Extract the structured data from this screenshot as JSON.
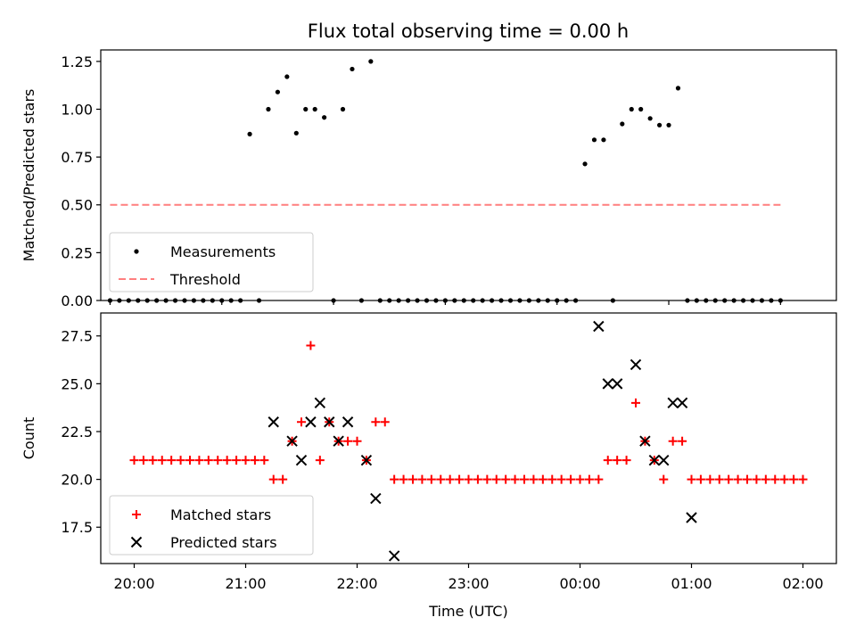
{
  "figure": {
    "title": "Flux total observing time = 0.00 h"
  },
  "chart_data": [
    {
      "type": "scatter",
      "ylabel": "Matched/Predicted stars",
      "xlabel": "",
      "xlim": [
        -0.0833,
        6.5
      ],
      "ylim": [
        0.0,
        1.31
      ],
      "x_tick_labels": [],
      "y_ticks": [
        0.0,
        0.25,
        0.5,
        0.75,
        1.0,
        1.25
      ],
      "y_tick_labels": [
        "0.00",
        "0.25",
        "0.50",
        "0.75",
        "1.00",
        "1.25"
      ],
      "grid": false,
      "legend": {
        "placement": "lower-left",
        "entries": [
          "Measurements",
          "Threshold"
        ]
      },
      "series": [
        {
          "name": "Measurements",
          "marker": "dot",
          "color": "#000000",
          "x": [
            0.0,
            0.0833,
            0.1667,
            0.25,
            0.3333,
            0.4167,
            0.5,
            0.5833,
            0.6667,
            0.75,
            0.8333,
            0.9167,
            1.0,
            1.0833,
            1.1667,
            1.25,
            1.3333,
            1.4167,
            1.5,
            1.5833,
            1.6667,
            1.75,
            1.8333,
            1.9167,
            2.0,
            2.0833,
            2.1667,
            2.25,
            2.3333,
            2.4167,
            2.5,
            2.5833,
            2.6667,
            2.75,
            2.8333,
            2.9167,
            3.0,
            3.0833,
            3.1667,
            3.25,
            3.3333,
            3.4167,
            3.5,
            3.5833,
            3.6667,
            3.75,
            3.8333,
            3.9167,
            4.0,
            4.0833,
            4.1667,
            4.25,
            4.3333,
            4.4167,
            4.5,
            4.5833,
            4.6667,
            4.75,
            4.8333,
            4.9167,
            5.0,
            5.0833,
            5.1667,
            5.25,
            5.3333,
            5.4167,
            5.5,
            5.5833,
            5.6667,
            5.75,
            5.8333,
            5.9167,
            6.0
          ],
          "y": [
            0,
            0,
            0,
            0,
            0,
            0,
            0,
            0,
            0,
            0,
            0,
            0,
            0,
            0,
            0,
            0.87,
            0,
            1.0,
            1.09,
            1.17,
            0.875,
            1.0,
            1.0,
            0.957,
            0,
            1.0,
            1.21,
            0,
            1.25,
            0,
            0,
            0,
            0,
            0,
            0,
            0,
            0,
            0,
            0,
            0,
            0,
            0,
            0,
            0,
            0,
            0,
            0,
            0,
            0,
            0,
            0,
            0.714,
            0.84,
            0.84,
            0,
            0.923,
            1.0,
            1.0,
            0.952,
            0.917,
            0.917,
            1.11,
            0,
            0,
            0,
            0,
            0,
            0,
            0,
            0,
            0,
            0,
            0
          ]
        },
        {
          "name": "Threshold",
          "style": "dashed",
          "color": "#ff7f7f",
          "x": [
            0.0,
            6.0
          ],
          "y": [
            0.5,
            0.5
          ]
        }
      ]
    },
    {
      "type": "scatter",
      "xlabel": "Time (UTC)",
      "ylabel": "Count",
      "xlim": [
        -0.3,
        6.3
      ],
      "ylim": [
        15.6,
        28.7
      ],
      "x_ticks": [
        0,
        1,
        2,
        3,
        4,
        5,
        6
      ],
      "x_tick_labels": [
        "20:00",
        "21:00",
        "22:00",
        "23:00",
        "00:00",
        "01:00",
        "02:00"
      ],
      "y_ticks": [
        17.5,
        20.0,
        22.5,
        25.0,
        27.5
      ],
      "y_tick_labels": [
        "17.5",
        "20.0",
        "22.5",
        "25.0",
        "27.5"
      ],
      "grid": false,
      "legend": {
        "placement": "lower-left",
        "entries": [
          "Matched stars",
          "Predicted stars"
        ]
      },
      "series": [
        {
          "name": "Matched stars",
          "marker": "plus",
          "color": "#ff0000",
          "x": [
            0.0,
            0.0833,
            0.1667,
            0.25,
            0.3333,
            0.4167,
            0.5,
            0.5833,
            0.6667,
            0.75,
            0.8333,
            0.9167,
            1.0,
            1.0833,
            1.1667,
            1.25,
            1.3333,
            1.4167,
            1.5,
            1.5833,
            1.6667,
            1.75,
            1.8333,
            1.9167,
            2.0,
            2.0833,
            2.1667,
            2.25,
            2.3333,
            2.4167,
            2.5,
            2.5833,
            2.6667,
            2.75,
            2.8333,
            2.9167,
            3.0,
            3.0833,
            3.1667,
            3.25,
            3.3333,
            3.4167,
            3.5,
            3.5833,
            3.6667,
            3.75,
            3.8333,
            3.9167,
            4.0,
            4.0833,
            4.1667,
            4.25,
            4.3333,
            4.4167,
            4.5,
            4.5833,
            4.6667,
            4.75,
            4.8333,
            4.9167,
            5.0,
            5.0833,
            5.1667,
            5.25,
            5.3333,
            5.4167,
            5.5,
            5.5833,
            5.6667,
            5.75,
            5.8333,
            5.9167,
            6.0
          ],
          "y": [
            21,
            21,
            21,
            21,
            21,
            21,
            21,
            21,
            21,
            21,
            21,
            21,
            21,
            21,
            21,
            20,
            20,
            22,
            23,
            27,
            21,
            23,
            22,
            22,
            22,
            21,
            23,
            23,
            20,
            20,
            20,
            20,
            20,
            20,
            20,
            20,
            20,
            20,
            20,
            20,
            20,
            20,
            20,
            20,
            20,
            20,
            20,
            20,
            20,
            20,
            20,
            21,
            21,
            21,
            24,
            22,
            21,
            20,
            22,
            22,
            20,
            20,
            20,
            20,
            20,
            20,
            20,
            20,
            20,
            20,
            20,
            20,
            20
          ]
        },
        {
          "name": "Predicted stars",
          "marker": "x",
          "color": "#000000",
          "x": [
            1.25,
            1.4167,
            1.5,
            1.5833,
            1.6667,
            1.75,
            1.8333,
            1.9167,
            2.0833,
            2.1667,
            2.3333,
            4.1667,
            4.25,
            4.3333,
            4.5,
            4.5833,
            4.6667,
            4.75,
            4.8333,
            4.9167,
            5.0
          ],
          "y": [
            23,
            22,
            21,
            23,
            24,
            23,
            22,
            23,
            21,
            19,
            16,
            28,
            25,
            25,
            26,
            22,
            21,
            21,
            24,
            24,
            18
          ]
        }
      ]
    }
  ]
}
